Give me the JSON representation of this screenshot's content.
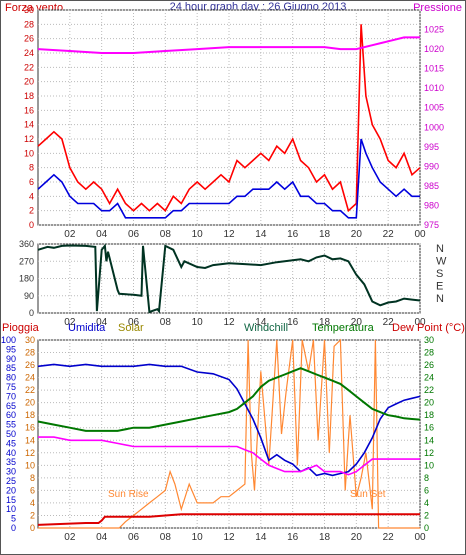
{
  "header": {
    "left_label": "Forza vento",
    "title": "24 hour graph day : 26 Giugno 2013",
    "right_label": "Pressione"
  },
  "colors": {
    "wind": "#ff0000",
    "wind_avg": "#0000dd",
    "pressure": "#ff00ff",
    "direction": "#003322",
    "humidity": "#0000cc",
    "solar": "#ff8833",
    "temperature": "#007700",
    "dewpoint": "#ff00ff",
    "rain": "#dd0000",
    "left_axis_text": "#cc0000",
    "right_axis_text": "#cc00cc",
    "bottom_right_axis_text": "#007700"
  },
  "chart_data": [
    {
      "type": "line",
      "name": "wind-pressure",
      "x_ticks": [
        "02",
        "04",
        "06",
        "08",
        "10",
        "12",
        "14",
        "16",
        "18",
        "20",
        "22",
        "00"
      ],
      "xlim": [
        0,
        24
      ],
      "ylim_left": [
        0,
        30
      ],
      "yticks_left": [
        "0",
        "2",
        "4",
        "6",
        "8",
        "10",
        "12",
        "14",
        "16",
        "18",
        "20",
        "22",
        "24",
        "26",
        "28",
        "30"
      ],
      "ylim_right": [
        975,
        1030
      ],
      "yticks_right": [
        "975",
        "980",
        "985",
        "990",
        "995",
        "1000",
        "1005",
        "1010",
        "1015",
        "1020",
        "1025"
      ],
      "grid": true,
      "series": [
        {
          "key": "gust",
          "x": [
            0,
            0.5,
            1,
            1.5,
            2,
            2.5,
            3,
            3.5,
            4,
            4.5,
            5,
            5.5,
            6,
            6.5,
            7,
            7.5,
            8,
            8.5,
            9,
            9.5,
            10,
            10.5,
            11,
            11.5,
            12,
            12.5,
            13,
            13.5,
            14,
            14.5,
            15,
            15.5,
            16,
            16.5,
            17,
            17.5,
            18,
            18.5,
            19,
            19.5,
            20,
            20.3,
            20.6,
            21,
            21.5,
            22,
            22.5,
            23,
            23.5,
            24
          ],
          "y": [
            11,
            12,
            13,
            12,
            8,
            6,
            5,
            6,
            5,
            3,
            5,
            3,
            2,
            3,
            2,
            3,
            2,
            4,
            3,
            5,
            6,
            5,
            6,
            7,
            6,
            9,
            8,
            9,
            10,
            9,
            11,
            10,
            12,
            9,
            8,
            6,
            7,
            5,
            6,
            2,
            3,
            28,
            18,
            14,
            12,
            9,
            8,
            10,
            7,
            8
          ]
        },
        {
          "key": "wind",
          "x": [
            0,
            0.5,
            1,
            1.5,
            2,
            2.5,
            3,
            3.5,
            4,
            4.5,
            5,
            5.5,
            6,
            6.5,
            7,
            7.5,
            8,
            8.5,
            9,
            9.5,
            10,
            10.5,
            11,
            11.5,
            12,
            12.5,
            13,
            13.5,
            14,
            14.5,
            15,
            15.5,
            16,
            16.5,
            17,
            17.5,
            18,
            18.5,
            19,
            19.5,
            20,
            20.3,
            20.6,
            21,
            21.5,
            22,
            22.5,
            23,
            23.5,
            24
          ],
          "y": [
            5,
            6,
            7,
            6,
            4,
            3,
            3,
            3,
            2,
            2,
            3,
            1,
            1,
            1,
            1,
            1,
            1,
            2,
            2,
            3,
            3,
            3,
            3,
            3,
            3,
            4,
            4,
            5,
            5,
            5,
            6,
            5,
            6,
            4,
            4,
            3,
            3,
            2,
            2,
            1,
            1,
            12,
            10,
            8,
            6,
            5,
            4,
            5,
            4,
            4
          ]
        },
        {
          "key": "pressure",
          "x": [
            0,
            2,
            4,
            6,
            8,
            10,
            12,
            14,
            16,
            18,
            19,
            20,
            21,
            22,
            23,
            24
          ],
          "y": [
            1020,
            1019.5,
            1019,
            1019,
            1019.5,
            1020,
            1020.5,
            1020.5,
            1020.5,
            1020.5,
            1020,
            1020,
            1021,
            1022,
            1023,
            1023
          ]
        }
      ]
    },
    {
      "type": "line",
      "name": "wind-direction",
      "x_ticks": [
        "02",
        "04",
        "06",
        "08",
        "10",
        "12",
        "14",
        "16",
        "18",
        "20",
        "22",
        "00"
      ],
      "xlim": [
        0,
        24
      ],
      "ylim": [
        0,
        360
      ],
      "yticks_left": [
        "0",
        "90",
        "180",
        "270",
        "360"
      ],
      "yticks_right": [
        "N",
        "W",
        "S",
        "E",
        "N"
      ],
      "grid": true,
      "series": [
        {
          "key": "direction",
          "x": [
            0,
            0.6,
            1,
            1.5,
            2,
            3,
            3.6,
            3.7,
            4,
            4.2,
            4.3,
            4.4,
            5,
            5.1,
            6,
            6.5,
            6.6,
            7,
            7.5,
            7.6,
            8,
            8.5,
            9,
            9.2,
            10,
            10.5,
            11,
            12,
            13,
            14,
            15,
            15.5,
            16,
            16.5,
            17,
            17.5,
            18,
            18.5,
            19,
            19.5,
            20,
            20.5,
            21,
            21.5,
            22,
            22.5,
            23,
            23.5,
            24
          ],
          "y": [
            330,
            345,
            340,
            350,
            352,
            350,
            345,
            10,
            330,
            350,
            270,
            320,
            120,
            100,
            95,
            90,
            350,
            5,
            20,
            10,
            350,
            330,
            240,
            270,
            240,
            235,
            250,
            260,
            255,
            250,
            265,
            270,
            275,
            280,
            270,
            290,
            300,
            280,
            285,
            270,
            200,
            150,
            60,
            40,
            55,
            60,
            75,
            70,
            65
          ]
        }
      ]
    },
    {
      "type": "line",
      "name": "temp-humidity",
      "x_ticks": [
        "02",
        "04",
        "06",
        "08",
        "10",
        "12",
        "14",
        "16",
        "18",
        "20",
        "22",
        "00"
      ],
      "xlim": [
        0,
        24
      ],
      "ylim_left": [
        0,
        100
      ],
      "yticks_left": [
        "0",
        "5",
        "10",
        "15",
        "20",
        "25",
        "30",
        "35",
        "40",
        "45",
        "50",
        "55",
        "60",
        "65",
        "70",
        "75",
        "80",
        "85",
        "90",
        "95",
        "100"
      ],
      "yticks_left2": [
        "0",
        "2",
        "4",
        "6",
        "8",
        "10",
        "12",
        "14",
        "16",
        "18",
        "20",
        "22",
        "24",
        "26",
        "28",
        "30"
      ],
      "ylim_right": [
        0,
        30
      ],
      "yticks_right": [
        "0",
        "2",
        "4",
        "6",
        "8",
        "10",
        "12",
        "14",
        "16",
        "18",
        "20",
        "22",
        "24",
        "26",
        "28",
        "30"
      ],
      "annotations": [
        "Sun Rise",
        "Sun Set"
      ],
      "grid": true,
      "series": [
        {
          "key": "humidity",
          "x": [
            0,
            1,
            2,
            3,
            4,
            5,
            6,
            7,
            8,
            9,
            10,
            11,
            12,
            12.5,
            13,
            13.5,
            14,
            14.5,
            15,
            15.5,
            16,
            16.5,
            17,
            17.5,
            18,
            18.5,
            19,
            19.5,
            20,
            20.5,
            21,
            21.5,
            22,
            22.5,
            23,
            23.5,
            24
          ],
          "y": [
            86,
            87,
            86,
            87,
            86,
            86,
            86,
            87,
            86,
            86,
            83,
            82,
            79,
            74,
            66,
            58,
            48,
            36,
            39,
            36,
            34,
            30,
            32,
            28,
            29,
            28,
            29,
            30,
            34,
            40,
            48,
            58,
            64,
            66,
            68,
            69,
            70
          ]
        },
        {
          "key": "temperature",
          "x": [
            0,
            1,
            2,
            3,
            4,
            5,
            6,
            7,
            8,
            9,
            10,
            11,
            12,
            12.5,
            13,
            13.5,
            14,
            14.5,
            15,
            15.5,
            16,
            16.5,
            17,
            17.5,
            18,
            18.5,
            19,
            19.5,
            20,
            20.5,
            21,
            21.5,
            22,
            22.5,
            23,
            23.5,
            24
          ],
          "y": [
            17,
            16.5,
            16,
            15.5,
            15.5,
            15.5,
            16,
            16,
            16.5,
            17,
            17.5,
            18,
            18.5,
            19,
            20,
            21,
            22.5,
            23.5,
            24,
            24.5,
            25,
            25.5,
            25,
            24.5,
            24,
            23.5,
            23,
            22,
            21,
            20,
            19,
            18.5,
            18,
            17.8,
            17.5,
            17.4,
            17.3
          ]
        },
        {
          "key": "dewpoint",
          "x": [
            0,
            1,
            2,
            3,
            4,
            5,
            6,
            7,
            8,
            9,
            10,
            11,
            12,
            12.5,
            13,
            13.5,
            14,
            14.5,
            15,
            15.5,
            16,
            16.5,
            17,
            17.5,
            18,
            18.5,
            19,
            19.5,
            20,
            20.5,
            21,
            21.5,
            22,
            22.5,
            23,
            23.5,
            24
          ],
          "y": [
            14.5,
            14.5,
            14,
            14,
            14,
            13.5,
            13,
            13,
            13,
            13,
            13,
            13,
            13,
            13,
            12.5,
            12,
            11,
            10,
            9.5,
            9,
            9,
            9,
            9.5,
            10,
            9,
            9,
            9,
            8.5,
            9,
            10,
            11,
            11,
            11,
            11,
            11,
            11,
            11
          ]
        },
        {
          "key": "solar",
          "x": [
            0,
            5,
            5.1,
            5.5,
            6,
            6.5,
            7,
            7.5,
            8,
            8.3,
            8.6,
            9,
            9.5,
            10,
            10.5,
            11,
            11.5,
            12,
            12.5,
            13,
            13.2,
            13.4,
            13.6,
            14,
            14.5,
            15,
            15.3,
            15.6,
            16,
            16.3,
            16.6,
            17,
            17.3,
            17.6,
            18,
            18.3,
            18.6,
            19,
            19.3,
            19.6,
            20,
            20.3,
            20.6,
            21,
            21.2,
            21.4,
            24
          ],
          "y": [
            0,
            0,
            0,
            1,
            2,
            3,
            4,
            5,
            6,
            9,
            7,
            3,
            7,
            4,
            4,
            4,
            5,
            5,
            6,
            7,
            30,
            12,
            6,
            25,
            10,
            30,
            15,
            22,
            30,
            10,
            30,
            25,
            30,
            14,
            30,
            12,
            29,
            30,
            6,
            18,
            5,
            8,
            12,
            3,
            30,
            0,
            0
          ]
        },
        {
          "key": "rain",
          "x": [
            0,
            1,
            2,
            3,
            3.8,
            4,
            4.2,
            5,
            5.5,
            6,
            7,
            8,
            9,
            10,
            12,
            14,
            16,
            18,
            20,
            22,
            24
          ],
          "y": [
            0.5,
            0.6,
            0.7,
            0.8,
            0.8,
            1.2,
            1.8,
            1.8,
            1.8,
            1.8,
            1.8,
            2.0,
            2.2,
            2.2,
            2.2,
            2.2,
            2.2,
            2.2,
            2.2,
            2.2,
            2.2
          ]
        }
      ]
    }
  ],
  "bottom_header": {
    "pioggia": "Pioggia",
    "umidita": "Umidita",
    "solar": "Solar",
    "windchill": "Windchill",
    "temperatura": "Temperatura",
    "dewpoint": "Dew Point (°C)"
  }
}
